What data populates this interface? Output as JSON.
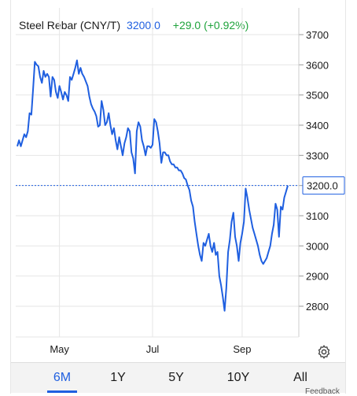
{
  "header": {
    "instrument": "Steel Rebar (CNY/T)",
    "price": "3200.0",
    "change": "+29.0 (+0.92%)"
  },
  "colors": {
    "line": "#1f5fe0",
    "positive": "#1fa33c",
    "price_tag_border": "#1f5fe0",
    "grid": "#e6e6e6"
  },
  "range_buttons": [
    "6M",
    "1Y",
    "5Y",
    "10Y",
    "All"
  ],
  "active_range": "6M",
  "settings_icon": "gear-icon",
  "footer_note": "Feedback",
  "chart_data": {
    "type": "line",
    "title": "",
    "xlabel": "",
    "ylabel": "",
    "ylim": [
      2700,
      3750
    ],
    "yticks": [
      2800,
      2900,
      3000,
      3100,
      3200,
      3300,
      3400,
      3500,
      3600,
      3700
    ],
    "xtick_labels": [
      "May",
      "Jul",
      "Sep"
    ],
    "xtick_indices": [
      24,
      77,
      128
    ],
    "last_value_label": "3200.0",
    "last_value": 3200.0,
    "grid": true,
    "series": [
      {
        "values": [
          3330,
          3350,
          3330,
          3350,
          3370,
          3360,
          3380,
          3440,
          3435,
          3520,
          3610,
          3600,
          3595,
          3560,
          3540,
          3580,
          3560,
          3570,
          3560,
          3495,
          3560,
          3550,
          3510,
          3490,
          3530,
          3510,
          3485,
          3510,
          3500,
          3480,
          3560,
          3550,
          3570,
          3590,
          3615,
          3570,
          3590,
          3570,
          3560,
          3545,
          3530,
          3495,
          3470,
          3455,
          3445,
          3430,
          3395,
          3400,
          3480,
          3450,
          3400,
          3410,
          3440,
          3400,
          3370,
          3390,
          3350,
          3320,
          3360,
          3330,
          3300,
          3340,
          3360,
          3390,
          3380,
          3310,
          3290,
          3240,
          3380,
          3410,
          3395,
          3350,
          3330,
          3300,
          3330,
          3330,
          3325,
          3335,
          3420,
          3410,
          3380,
          3340,
          3275,
          3310,
          3310,
          3300,
          3300,
          3280,
          3270,
          3270,
          3260,
          3260,
          3250,
          3250,
          3240,
          3225,
          3220,
          3200,
          3185,
          3150,
          3130,
          3080,
          3040,
          3000,
          2970,
          2950,
          3010,
          3000,
          3020,
          3040,
          3000,
          2980,
          3010,
          2970,
          2980,
          2900,
          2870,
          2830,
          2785,
          2860,
          2980,
          3020,
          3080,
          3110,
          3030,
          3000,
          2950,
          3010,
          3040,
          3080,
          3190,
          3160,
          3120,
          3090,
          3060,
          3040,
          3020,
          3000,
          2970,
          2950,
          2940,
          2950,
          2960,
          2980,
          3000,
          3040,
          3070,
          3140,
          3120,
          3030,
          3130,
          3120,
          3160,
          3180,
          3200
        ]
      }
    ]
  }
}
